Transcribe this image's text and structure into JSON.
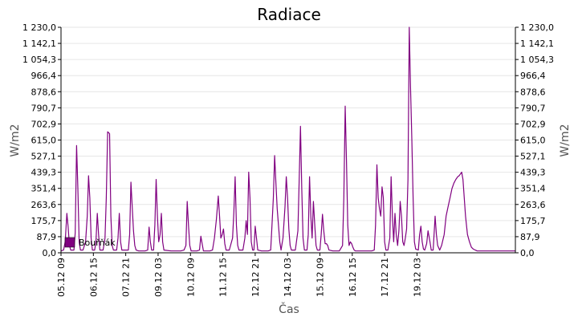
{
  "chart_data": {
    "type": "line",
    "title": "Radiace",
    "xlabel": "Čas",
    "ylabel_left": "W/m2",
    "ylabel_right": "W/m2",
    "ylim": [
      0,
      1230
    ],
    "y_ticks": [
      "0,0",
      "87,9",
      "175,7",
      "263,6",
      "351,4",
      "439,3",
      "527,1",
      "615,0",
      "702,9",
      "790,7",
      "878,6",
      "966,4",
      "1 054,3",
      "1 142,1",
      "1 230,0"
    ],
    "x_range_days": [
      0,
      14.04
    ],
    "x_ticks": [
      {
        "label": "05.12 09",
        "day": 0
      },
      {
        "label": "06.12 15",
        "day": 1
      },
      {
        "label": "07.12 21",
        "day": 2
      },
      {
        "label": "09.12 03",
        "day": 3
      },
      {
        "label": "10.12 09",
        "day": 4
      },
      {
        "label": "11.12 15",
        "day": 5
      },
      {
        "label": "12.12 21",
        "day": 6
      },
      {
        "label": "14.12 03",
        "day": 7
      },
      {
        "label": "15.12 09",
        "day": 8
      },
      {
        "label": "16.12 15",
        "day": 9
      },
      {
        "label": "17.12 21",
        "day": 10
      },
      {
        "label": "19.12 03",
        "day": 11
      }
    ],
    "grid": true,
    "legend_position": "bottom-left",
    "series": [
      {
        "name": "Bouřňák",
        "color": "#800080",
        "points": [
          [
            0.0,
            10
          ],
          [
            0.08,
            15
          ],
          [
            0.13,
            60
          ],
          [
            0.18,
            215
          ],
          [
            0.22,
            140
          ],
          [
            0.26,
            40
          ],
          [
            0.3,
            15
          ],
          [
            0.4,
            15
          ],
          [
            0.44,
            110
          ],
          [
            0.48,
            585
          ],
          [
            0.52,
            350
          ],
          [
            0.56,
            60
          ],
          [
            0.6,
            15
          ],
          [
            0.68,
            15
          ],
          [
            0.76,
            60
          ],
          [
            0.81,
            200
          ],
          [
            0.85,
            420
          ],
          [
            0.89,
            300
          ],
          [
            0.93,
            80
          ],
          [
            0.97,
            15
          ],
          [
            1.04,
            15
          ],
          [
            1.08,
            60
          ],
          [
            1.12,
            215
          ],
          [
            1.16,
            100
          ],
          [
            1.2,
            15
          ],
          [
            1.3,
            15
          ],
          [
            1.36,
            80
          ],
          [
            1.4,
            300
          ],
          [
            1.44,
            660
          ],
          [
            1.5,
            650
          ],
          [
            1.54,
            200
          ],
          [
            1.58,
            40
          ],
          [
            1.62,
            15
          ],
          [
            1.72,
            15
          ],
          [
            1.76,
            80
          ],
          [
            1.8,
            215
          ],
          [
            1.84,
            60
          ],
          [
            1.88,
            15
          ],
          [
            2.08,
            15
          ],
          [
            2.12,
            100
          ],
          [
            2.16,
            385
          ],
          [
            2.2,
            250
          ],
          [
            2.24,
            120
          ],
          [
            2.28,
            40
          ],
          [
            2.32,
            15
          ],
          [
            2.4,
            10
          ],
          [
            2.6,
            10
          ],
          [
            2.68,
            15
          ],
          [
            2.72,
            140
          ],
          [
            2.76,
            60
          ],
          [
            2.8,
            15
          ],
          [
            2.86,
            15
          ],
          [
            2.9,
            150
          ],
          [
            2.94,
            400
          ],
          [
            2.98,
            200
          ],
          [
            3.02,
            60
          ],
          [
            3.06,
            100
          ],
          [
            3.1,
            215
          ],
          [
            3.14,
            60
          ],
          [
            3.18,
            15
          ],
          [
            3.4,
            10
          ],
          [
            3.7,
            10
          ],
          [
            3.8,
            15
          ],
          [
            3.86,
            40
          ],
          [
            3.9,
            280
          ],
          [
            3.94,
            150
          ],
          [
            3.98,
            40
          ],
          [
            4.02,
            10
          ],
          [
            4.2,
            10
          ],
          [
            4.28,
            15
          ],
          [
            4.32,
            90
          ],
          [
            4.36,
            50
          ],
          [
            4.4,
            10
          ],
          [
            4.6,
            10
          ],
          [
            4.68,
            15
          ],
          [
            4.74,
            80
          ],
          [
            4.8,
            180
          ],
          [
            4.86,
            310
          ],
          [
            4.9,
            200
          ],
          [
            4.94,
            80
          ],
          [
            4.98,
            100
          ],
          [
            5.02,
            130
          ],
          [
            5.06,
            50
          ],
          [
            5.1,
            15
          ],
          [
            5.2,
            15
          ],
          [
            5.3,
            80
          ],
          [
            5.34,
            220
          ],
          [
            5.38,
            415
          ],
          [
            5.42,
            150
          ],
          [
            5.46,
            40
          ],
          [
            5.5,
            15
          ],
          [
            5.62,
            15
          ],
          [
            5.68,
            80
          ],
          [
            5.72,
            175
          ],
          [
            5.76,
            100
          ],
          [
            5.8,
            440
          ],
          [
            5.84,
            300
          ],
          [
            5.88,
            60
          ],
          [
            5.92,
            15
          ],
          [
            5.96,
            15
          ],
          [
            6.0,
            145
          ],
          [
            6.04,
            80
          ],
          [
            6.08,
            15
          ],
          [
            6.2,
            10
          ],
          [
            6.4,
            10
          ],
          [
            6.48,
            15
          ],
          [
            6.52,
            150
          ],
          [
            6.56,
            300
          ],
          [
            6.6,
            530
          ],
          [
            6.64,
            380
          ],
          [
            6.68,
            240
          ],
          [
            6.72,
            150
          ],
          [
            6.76,
            60
          ],
          [
            6.8,
            15
          ],
          [
            6.86,
            80
          ],
          [
            6.92,
            250
          ],
          [
            6.96,
            415
          ],
          [
            7.0,
            300
          ],
          [
            7.04,
            130
          ],
          [
            7.08,
            40
          ],
          [
            7.12,
            15
          ],
          [
            7.24,
            15
          ],
          [
            7.32,
            120
          ],
          [
            7.36,
            400
          ],
          [
            7.4,
            690
          ],
          [
            7.44,
            350
          ],
          [
            7.48,
            80
          ],
          [
            7.52,
            15
          ],
          [
            7.6,
            15
          ],
          [
            7.64,
            100
          ],
          [
            7.68,
            415
          ],
          [
            7.72,
            200
          ],
          [
            7.76,
            80
          ],
          [
            7.8,
            280
          ],
          [
            7.84,
            150
          ],
          [
            7.88,
            40
          ],
          [
            7.92,
            15
          ],
          [
            8.0,
            15
          ],
          [
            8.04,
            100
          ],
          [
            8.08,
            210
          ],
          [
            8.12,
            120
          ],
          [
            8.16,
            50
          ],
          [
            8.2,
            50
          ],
          [
            8.24,
            40
          ],
          [
            8.28,
            15
          ],
          [
            8.4,
            10
          ],
          [
            8.6,
            10
          ],
          [
            8.7,
            40
          ],
          [
            8.74,
            300
          ],
          [
            8.78,
            800
          ],
          [
            8.82,
            500
          ],
          [
            8.86,
            150
          ],
          [
            8.9,
            40
          ],
          [
            8.94,
            60
          ],
          [
            8.98,
            50
          ],
          [
            9.02,
            30
          ],
          [
            9.06,
            15
          ],
          [
            9.1,
            10
          ],
          [
            9.4,
            10
          ],
          [
            9.6,
            10
          ],
          [
            9.68,
            15
          ],
          [
            9.72,
            150
          ],
          [
            9.76,
            480
          ],
          [
            9.8,
            300
          ],
          [
            9.84,
            240
          ],
          [
            9.88,
            200
          ],
          [
            9.92,
            360
          ],
          [
            9.96,
            300
          ],
          [
            10.0,
            60
          ],
          [
            10.04,
            15
          ],
          [
            10.1,
            15
          ],
          [
            10.16,
            80
          ],
          [
            10.2,
            415
          ],
          [
            10.24,
            200
          ],
          [
            10.28,
            60
          ],
          [
            10.32,
            215
          ],
          [
            10.36,
            100
          ],
          [
            10.4,
            40
          ],
          [
            10.44,
            120
          ],
          [
            10.48,
            280
          ],
          [
            10.52,
            200
          ],
          [
            10.56,
            60
          ],
          [
            10.6,
            40
          ],
          [
            10.64,
            80
          ],
          [
            10.68,
            130
          ],
          [
            10.72,
            400
          ],
          [
            10.76,
            1230
          ],
          [
            10.8,
            900
          ],
          [
            10.84,
            620
          ],
          [
            10.88,
            300
          ],
          [
            10.92,
            60
          ],
          [
            10.96,
            20
          ],
          [
            11.04,
            15
          ],
          [
            11.08,
            100
          ],
          [
            11.12,
            145
          ],
          [
            11.16,
            60
          ],
          [
            11.2,
            20
          ],
          [
            11.24,
            15
          ],
          [
            11.3,
            50
          ],
          [
            11.34,
            120
          ],
          [
            11.4,
            60
          ],
          [
            11.44,
            15
          ],
          [
            11.5,
            15
          ],
          [
            11.56,
            200
          ],
          [
            11.6,
            100
          ],
          [
            11.64,
            40
          ],
          [
            11.7,
            15
          ],
          [
            11.76,
            40
          ],
          [
            11.84,
            100
          ],
          [
            11.9,
            200
          ],
          [
            11.96,
            250
          ],
          [
            12.02,
            300
          ],
          [
            12.08,
            350
          ],
          [
            12.14,
            380
          ],
          [
            12.2,
            400
          ],
          [
            12.26,
            415
          ],
          [
            12.3,
            420
          ],
          [
            12.34,
            430
          ],
          [
            12.38,
            440
          ],
          [
            12.42,
            400
          ],
          [
            12.46,
            300
          ],
          [
            12.5,
            200
          ],
          [
            12.56,
            100
          ],
          [
            12.62,
            60
          ],
          [
            12.68,
            30
          ],
          [
            12.74,
            20
          ],
          [
            12.8,
            15
          ],
          [
            12.86,
            10
          ],
          [
            12.92,
            10
          ],
          [
            13.0,
            10
          ],
          [
            13.1,
            10
          ],
          [
            13.2,
            10
          ],
          [
            13.3,
            10
          ],
          [
            13.4,
            10
          ],
          [
            13.5,
            10
          ],
          [
            13.6,
            10
          ],
          [
            13.7,
            10
          ],
          [
            13.8,
            10
          ],
          [
            13.9,
            10
          ],
          [
            14.04,
            10
          ]
        ]
      }
    ]
  }
}
